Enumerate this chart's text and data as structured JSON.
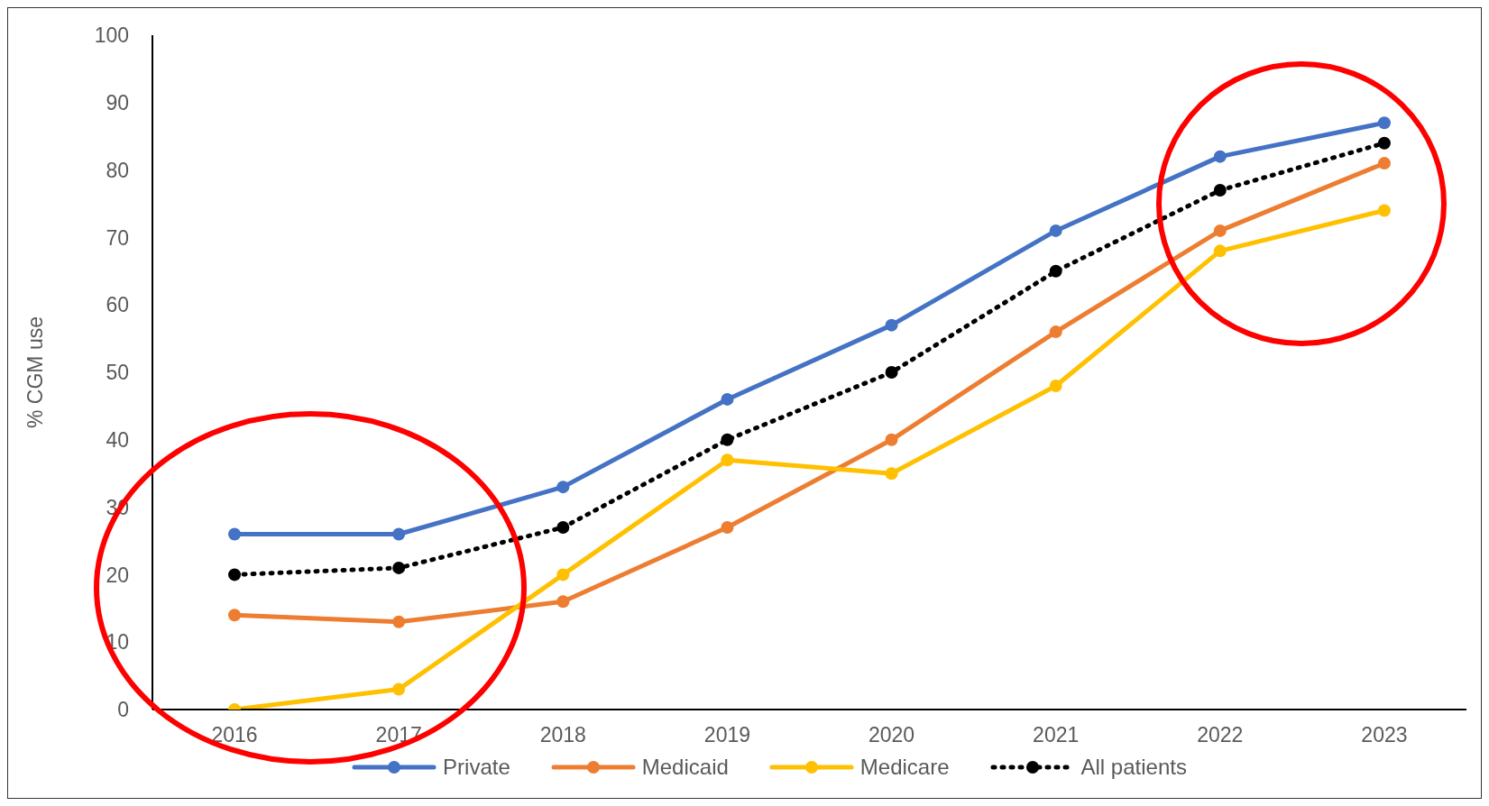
{
  "chart_data": {
    "type": "line",
    "ylabel": "% CGM use",
    "categories": [
      "2016",
      "2017",
      "2018",
      "2019",
      "2020",
      "2021",
      "2022",
      "2023"
    ],
    "ylim": [
      0,
      100
    ],
    "yticks": [
      0,
      10,
      20,
      30,
      40,
      50,
      60,
      70,
      80,
      90,
      100
    ],
    "grid": false,
    "legend": "bottom",
    "marker": "circle",
    "series": [
      {
        "name": "Private",
        "color": "#4472c4",
        "line_style": "solid",
        "values": [
          26,
          26,
          33,
          46,
          57,
          71,
          82,
          87
        ]
      },
      {
        "name": "Medicaid",
        "color": "#ed7d31",
        "line_style": "solid",
        "values": [
          14,
          13,
          16,
          27,
          40,
          56,
          71,
          81
        ]
      },
      {
        "name": "Medicare",
        "color": "#ffc000",
        "line_style": "solid",
        "values": [
          0,
          3,
          20,
          37,
          35,
          48,
          68,
          74
        ]
      },
      {
        "name": "All patients",
        "color": "#000000",
        "line_style": "dotted",
        "values": [
          20,
          21,
          27,
          40,
          50,
          65,
          77,
          84
        ]
      }
    ]
  }
}
